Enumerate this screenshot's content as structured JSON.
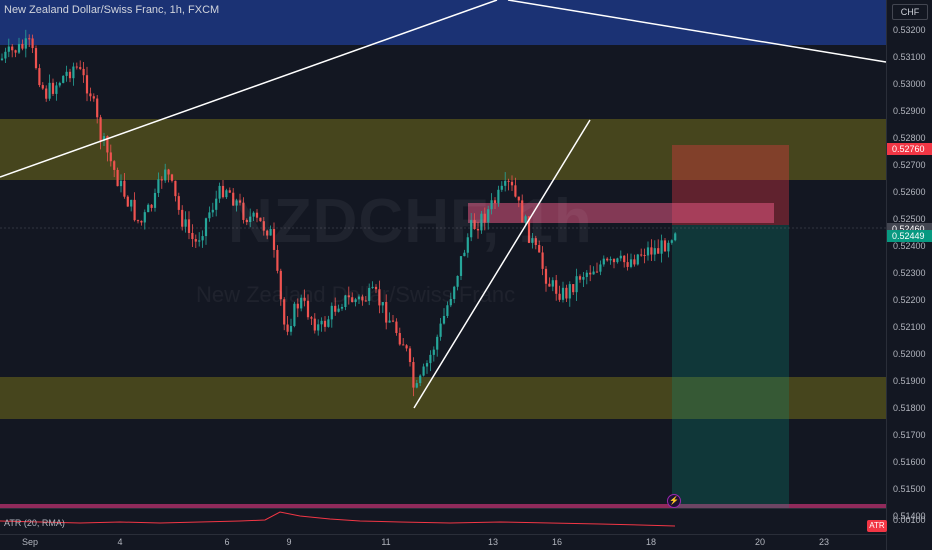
{
  "header": {
    "title": "New Zealand Dollar/Swiss Franc, 1h, FXCM"
  },
  "watermark": {
    "symbol": "NZDCHF, 1h",
    "name": "New Zealand Dollar/Swiss Franc"
  },
  "price_axis": {
    "currency": "CHF",
    "ticks": [
      "0.53200",
      "0.53100",
      "0.53000",
      "0.52900",
      "0.52800",
      "0.52700",
      "0.52600",
      "0.52500",
      "0.52400",
      "0.52300",
      "0.52200",
      "0.52100",
      "0.52000",
      "0.51900",
      "0.51800",
      "0.51700",
      "0.51600",
      "0.51500",
      "0.51400"
    ],
    "stop_price": "0.52760",
    "current_price": "0.52460",
    "bid_price": "0.52449"
  },
  "atr": {
    "label": "ATR (20, RMA)",
    "value": "0.00100",
    "badge": "ATR"
  },
  "time_axis": {
    "ticks": [
      "Sep",
      "4",
      "6",
      "9",
      "11",
      "13",
      "16",
      "18",
      "20",
      "23"
    ]
  },
  "colors": {
    "up": "#26a69a",
    "down": "#ef5350",
    "background": "#131722",
    "resistance_zone": "#1e3a8a",
    "supply_demand_zone": "#5c5a1b",
    "stop_zone": "#f23645",
    "target_zone": "#089981"
  },
  "icons": {
    "alert": "lightning-icon"
  }
}
